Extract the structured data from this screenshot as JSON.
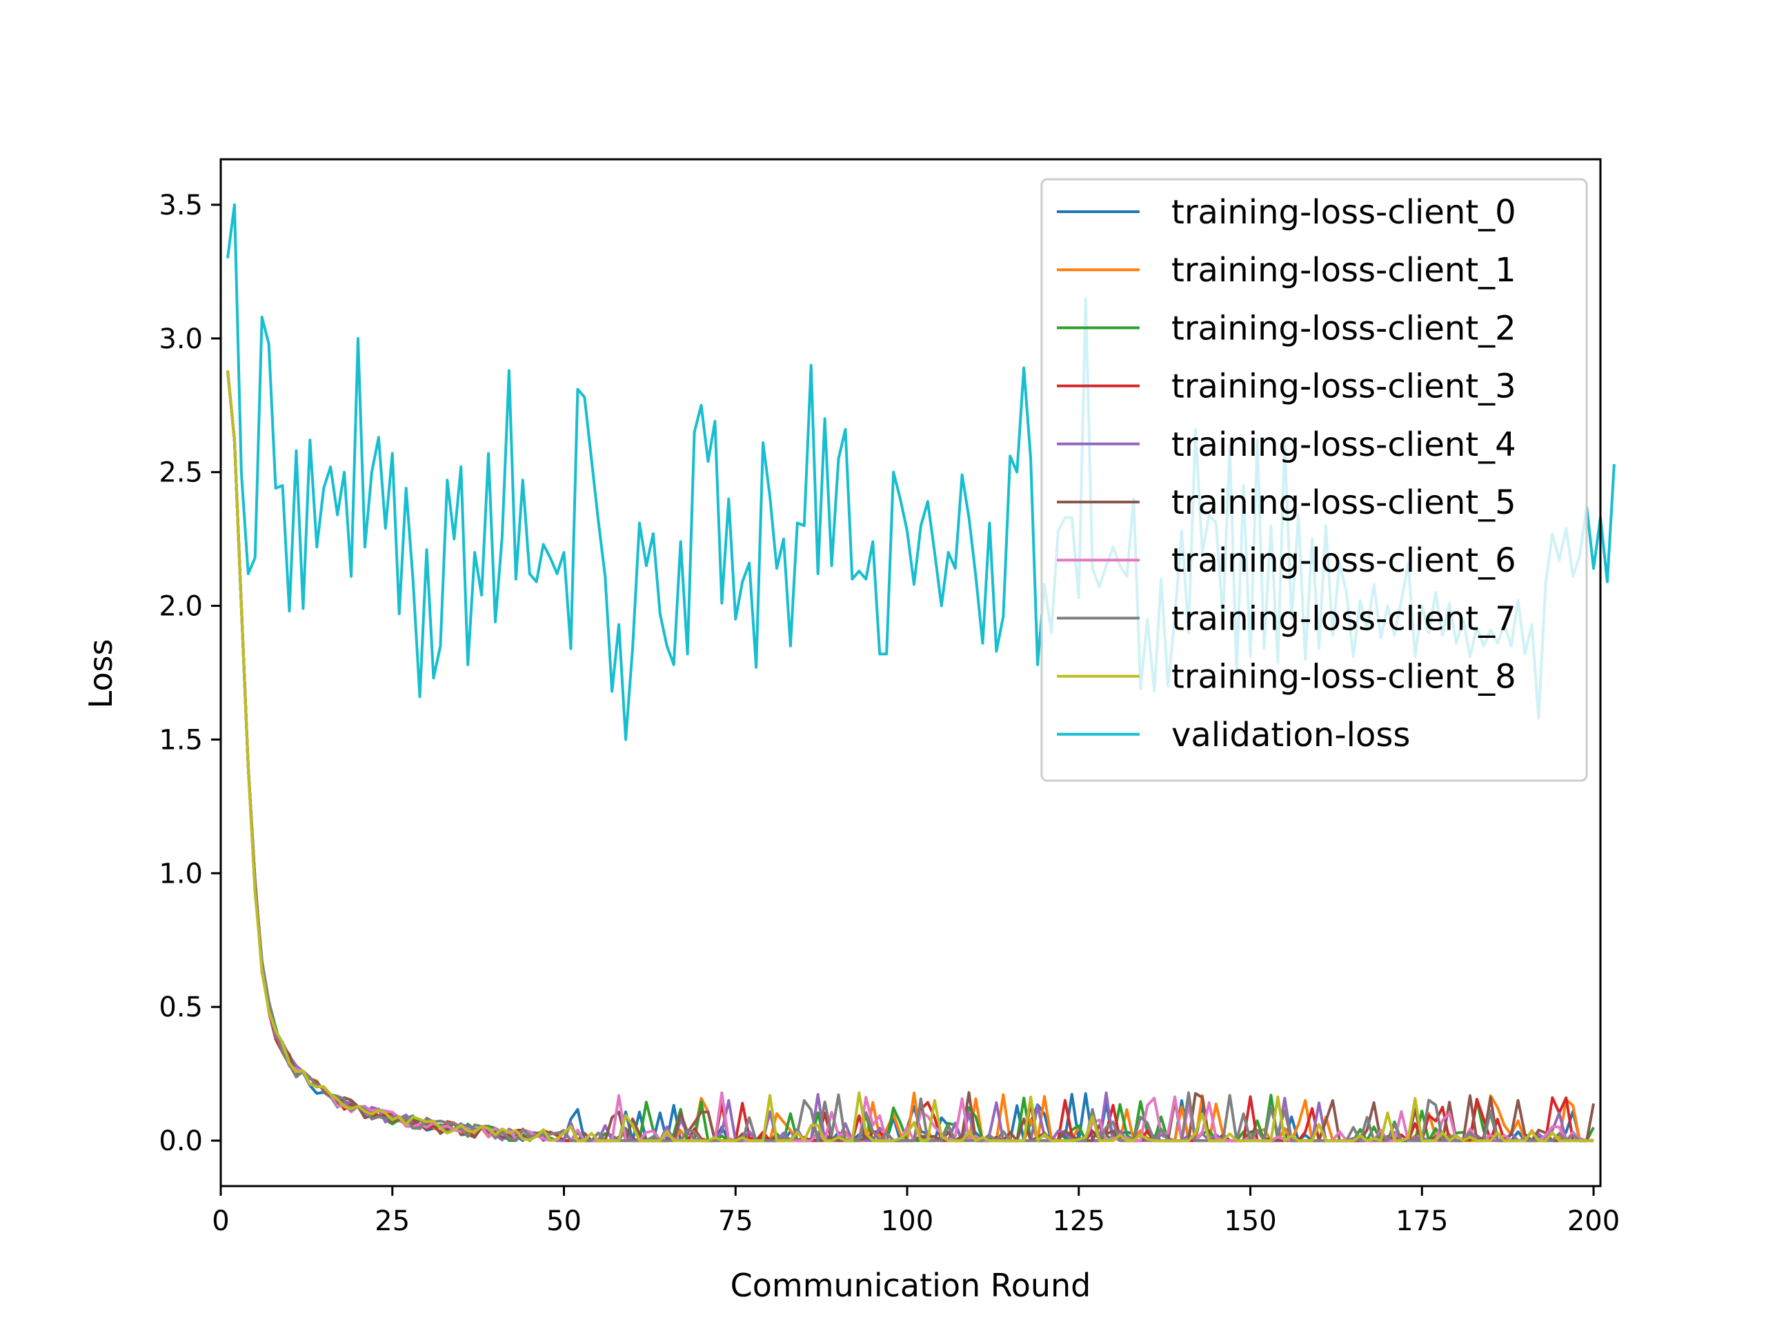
{
  "chart_data": {
    "type": "line",
    "title": "",
    "xlabel": "Communication Round",
    "ylabel": "Loss",
    "xlim": [
      0,
      201
    ],
    "ylim": [
      -0.17,
      3.67
    ],
    "xticks": [
      0,
      25,
      50,
      75,
      100,
      125,
      150,
      175,
      200
    ],
    "xtick_labels": [
      "0",
      "25",
      "50",
      "75",
      "100",
      "125",
      "150",
      "175",
      "200"
    ],
    "yticks": [
      0.0,
      0.5,
      1.0,
      1.5,
      2.0,
      2.5,
      3.0,
      3.5
    ],
    "ytick_labels": [
      "0.0",
      "0.5",
      "1.0",
      "1.5",
      "2.0",
      "2.5",
      "3.0",
      "3.5"
    ],
    "grid": false,
    "legend_position": "top-right",
    "x_start": 1,
    "x_end": 200,
    "series": [
      {
        "name": "training-loss-client_0",
        "color": "#1f77b4"
      },
      {
        "name": "training-loss-client_1",
        "color": "#ff7f0e"
      },
      {
        "name": "training-loss-client_2",
        "color": "#2ca02c"
      },
      {
        "name": "training-loss-client_3",
        "color": "#d62728"
      },
      {
        "name": "training-loss-client_4",
        "color": "#9467bd"
      },
      {
        "name": "training-loss-client_5",
        "color": "#8c564b"
      },
      {
        "name": "training-loss-client_6",
        "color": "#e377c2"
      },
      {
        "name": "training-loss-client_7",
        "color": "#7f7f7f"
      },
      {
        "name": "training-loss-client_8",
        "color": "#bcbd22"
      },
      {
        "name": "validation-loss",
        "color": "#17becf"
      }
    ],
    "training_curve": [
      2.88,
      2.62,
      2.0,
      1.4,
      0.95,
      0.65,
      0.5,
      0.4,
      0.35,
      0.3,
      0.26,
      0.24,
      0.22,
      0.2,
      0.18,
      0.16,
      0.15,
      0.14,
      0.13,
      0.12,
      0.11,
      0.1,
      0.095,
      0.09,
      0.085,
      0.08,
      0.075,
      0.07,
      0.065,
      0.06,
      0.055,
      0.05,
      0.047,
      0.044,
      0.041,
      0.038,
      0.035,
      0.032,
      0.03,
      0.028,
      0.026,
      0.024,
      0.022,
      0.02,
      0.019,
      0.018,
      0.017,
      0.016,
      0.015,
      0.014
    ],
    "training_tail_max": 0.18,
    "validation_values": [
      3.3,
      3.5,
      2.5,
      2.12,
      2.18,
      3.08,
      2.98,
      2.44,
      2.45,
      1.98,
      2.58,
      1.99,
      2.62,
      2.22,
      2.44,
      2.52,
      2.34,
      2.5,
      2.11,
      3.0,
      2.22,
      2.5,
      2.63,
      2.29,
      2.57,
      1.97,
      2.44,
      2.1,
      1.66,
      2.21,
      1.73,
      1.85,
      2.47,
      2.25,
      2.52,
      1.78,
      2.2,
      2.04,
      2.57,
      1.94,
      2.26,
      2.88,
      2.1,
      2.47,
      2.12,
      2.09,
      2.23,
      2.18,
      2.12,
      2.2,
      1.84,
      2.81,
      2.78,
      2.55,
      2.32,
      2.11,
      1.68,
      1.93,
      1.5,
      1.84,
      2.31,
      2.15,
      2.27,
      1.97,
      1.85,
      1.78,
      2.24,
      1.82,
      2.65,
      2.75,
      2.54,
      2.69,
      2.01,
      2.4,
      1.95,
      2.09,
      2.16,
      1.77,
      2.61,
      2.41,
      2.14,
      2.25,
      1.85,
      2.31,
      2.3,
      2.9,
      2.12,
      2.7,
      2.15,
      2.55,
      2.66,
      2.1,
      2.13,
      2.1,
      2.24,
      1.82,
      1.82,
      2.5,
      2.4,
      2.28,
      2.08,
      2.3,
      2.39,
      2.2,
      2.0,
      2.2,
      2.14,
      2.49,
      2.33,
      2.11,
      1.86,
      2.31,
      1.83,
      1.96,
      2.56,
      2.5,
      2.89,
      2.55,
      1.78,
      2.08,
      1.9,
      2.28,
      2.33,
      2.33,
      2.03,
      3.15,
      2.14,
      2.07,
      2.15,
      2.22,
      2.15,
      2.11,
      2.4,
      1.69,
      1.95,
      1.68,
      2.1,
      1.7,
      1.96,
      2.28,
      1.9,
      2.66,
      2.2,
      2.34,
      2.31,
      1.95,
      2.6,
      1.75,
      2.45,
      1.81,
      2.62,
      1.84,
      2.3,
      1.79,
      2.61,
      1.95,
      2.34,
      1.8,
      2.25,
      1.84,
      2.3,
      1.89,
      2.16,
      2.05,
      1.81,
      2.02,
      1.91,
      2.08,
      1.88,
      2.0,
      1.89,
      2.02,
      2.16,
      1.81,
      2.0,
      1.9,
      2.05,
      1.89,
      2.01,
      1.86,
      1.95,
      1.81,
      1.92,
      1.85,
      1.91,
      1.86,
      1.93,
      1.85,
      2.02,
      1.82,
      1.93,
      1.58,
      2.08,
      2.27,
      2.17,
      2.29,
      2.11,
      2.19,
      2.37,
      2.14,
      2.33,
      2.09,
      2.53
    ]
  }
}
